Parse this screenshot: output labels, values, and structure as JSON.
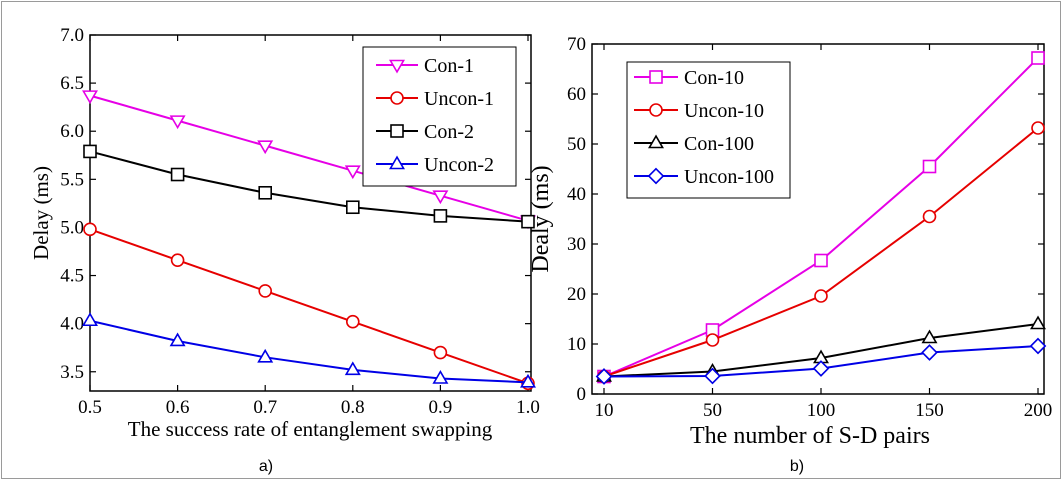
{
  "chart_data": [
    {
      "type": "line",
      "caption": "a)",
      "xlabel": "The success rate of entanglement swapping",
      "ylabel": "Delay (ms)",
      "xlim": [
        0.5,
        1.0
      ],
      "ylim": [
        3.3,
        7.0
      ],
      "xticks": [
        "0.5",
        "0.6",
        "0.7",
        "0.8",
        "0.9",
        "1.0"
      ],
      "yticks": [
        "3.5",
        "4.0",
        "4.5",
        "5.0",
        "5.5",
        "6.0",
        "6.5",
        "7.0"
      ],
      "legend_position": "top-right",
      "x": [
        0.5,
        0.6,
        0.7,
        0.8,
        0.9,
        1.0
      ],
      "series": [
        {
          "name": "Con-1",
          "color": "#e600e6",
          "marker": "triangle-down",
          "values": [
            6.37,
            6.11,
            5.85,
            5.59,
            5.33,
            5.07
          ]
        },
        {
          "name": "Uncon-1",
          "color": "#e60000",
          "marker": "circle",
          "values": [
            4.98,
            4.66,
            4.34,
            4.02,
            3.7,
            3.38
          ]
        },
        {
          "name": "Con-2",
          "color": "#000000",
          "marker": "square",
          "values": [
            5.79,
            5.55,
            5.36,
            5.21,
            5.12,
            5.06
          ]
        },
        {
          "name": "Uncon-2",
          "color": "#0000e6",
          "marker": "triangle-up",
          "values": [
            4.03,
            3.82,
            3.65,
            3.52,
            3.43,
            3.39
          ]
        }
      ]
    },
    {
      "type": "line",
      "caption": "b)",
      "xlabel": "The number of S-D pairs",
      "ylabel": "Dealy (ms)",
      "ylim": [
        0,
        70
      ],
      "xticks": [
        "10",
        "50",
        "100",
        "150",
        "200"
      ],
      "yticks": [
        "0",
        "10",
        "20",
        "30",
        "40",
        "50",
        "60",
        "70"
      ],
      "legend_position": "top-left",
      "x": [
        10,
        50,
        100,
        150,
        200
      ],
      "series": [
        {
          "name": "Con-10",
          "color": "#e600e6",
          "marker": "square",
          "values": [
            3.5,
            12.8,
            26.7,
            45.5,
            67.2
          ]
        },
        {
          "name": "Uncon-10",
          "color": "#e60000",
          "marker": "circle",
          "values": [
            3.5,
            10.8,
            19.6,
            35.5,
            53.2
          ]
        },
        {
          "name": "Con-100",
          "color": "#000000",
          "marker": "triangle-up",
          "values": [
            3.5,
            4.5,
            7.2,
            11.2,
            14.0
          ]
        },
        {
          "name": "Uncon-100",
          "color": "#0000e6",
          "marker": "diamond",
          "values": [
            3.5,
            3.6,
            5.1,
            8.3,
            9.6
          ]
        }
      ]
    }
  ]
}
